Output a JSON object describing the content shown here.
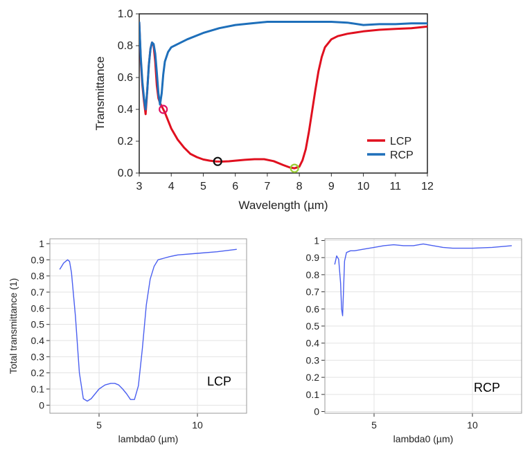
{
  "chart_data": [
    {
      "id": "top",
      "type": "line",
      "xlabel": "Wavelength (µm)",
      "ylabel": "Transmittance",
      "xlim": [
        3,
        12
      ],
      "ylim": [
        0,
        1
      ],
      "xticks": [
        "3",
        "4",
        "5",
        "6",
        "7",
        "8",
        "9",
        "10",
        "11",
        "12"
      ],
      "yticks": [
        "0.0",
        "0.2",
        "0.4",
        "0.6",
        "0.8",
        "1.0"
      ],
      "legend": {
        "position": "bottom-right",
        "entries": [
          "LCP",
          "RCP"
        ]
      },
      "series": [
        {
          "name": "LCP",
          "color": "#e0101f",
          "x": [
            3.0,
            3.05,
            3.1,
            3.15,
            3.2,
            3.25,
            3.3,
            3.35,
            3.4,
            3.45,
            3.5,
            3.55,
            3.6,
            3.65,
            3.7,
            3.75,
            3.8,
            3.9,
            4.0,
            4.2,
            4.4,
            4.6,
            4.8,
            5.0,
            5.2,
            5.4,
            5.6,
            5.8,
            6.0,
            6.3,
            6.6,
            6.9,
            7.2,
            7.5,
            7.7,
            7.85,
            8.0,
            8.1,
            8.2,
            8.3,
            8.4,
            8.5,
            8.6,
            8.7,
            8.8,
            9.0,
            9.2,
            9.5,
            10.0,
            10.5,
            11.0,
            11.5,
            12.0
          ],
          "y": [
            0.95,
            0.7,
            0.55,
            0.45,
            0.37,
            0.52,
            0.68,
            0.78,
            0.82,
            0.8,
            0.7,
            0.55,
            0.47,
            0.44,
            0.42,
            0.4,
            0.38,
            0.33,
            0.28,
            0.21,
            0.16,
            0.12,
            0.1,
            0.085,
            0.078,
            0.073,
            0.072,
            0.074,
            0.078,
            0.083,
            0.087,
            0.087,
            0.075,
            0.05,
            0.035,
            0.03,
            0.04,
            0.08,
            0.15,
            0.26,
            0.39,
            0.52,
            0.64,
            0.73,
            0.79,
            0.84,
            0.86,
            0.875,
            0.89,
            0.9,
            0.905,
            0.91,
            0.92
          ]
        },
        {
          "name": "RCP",
          "color": "#1e6fba",
          "x": [
            3.0,
            3.05,
            3.1,
            3.15,
            3.2,
            3.25,
            3.3,
            3.35,
            3.4,
            3.45,
            3.5,
            3.55,
            3.6,
            3.65,
            3.7,
            3.75,
            3.8,
            3.9,
            4.0,
            4.2,
            4.5,
            5.0,
            5.5,
            6.0,
            6.5,
            7.0,
            7.5,
            8.0,
            8.5,
            9.0,
            9.5,
            10.0,
            10.5,
            11.0,
            11.5,
            12.0
          ],
          "y": [
            0.95,
            0.72,
            0.57,
            0.47,
            0.4,
            0.52,
            0.68,
            0.78,
            0.82,
            0.81,
            0.75,
            0.63,
            0.5,
            0.43,
            0.5,
            0.62,
            0.7,
            0.76,
            0.79,
            0.81,
            0.84,
            0.88,
            0.91,
            0.93,
            0.94,
            0.95,
            0.95,
            0.95,
            0.95,
            0.95,
            0.945,
            0.93,
            0.935,
            0.935,
            0.94,
            0.94
          ]
        }
      ],
      "markers": [
        {
          "x": 3.75,
          "y": 0.4,
          "color": "#e01060"
        },
        {
          "x": 5.45,
          "y": 0.073,
          "color": "#111111"
        },
        {
          "x": 7.85,
          "y": 0.03,
          "color": "#9acd32"
        }
      ]
    },
    {
      "id": "lcp",
      "type": "line",
      "xlabel": "lambda0 (µm)",
      "ylabel": "Total transmittance (1)",
      "annotation": "LCP",
      "xlim": [
        2.5,
        12.5
      ],
      "ylim": [
        -0.05,
        1.03
      ],
      "xticks": [
        "5",
        "10"
      ],
      "yticks": [
        "0",
        "0.1",
        "0.2",
        "0.3",
        "0.4",
        "0.5",
        "0.6",
        "0.7",
        "0.8",
        "0.9",
        "1"
      ],
      "series": [
        {
          "name": "LCP",
          "color": "#4a5ff0",
          "x": [
            3.0,
            3.1,
            3.2,
            3.3,
            3.4,
            3.5,
            3.6,
            3.8,
            4.0,
            4.2,
            4.4,
            4.6,
            4.8,
            5.0,
            5.3,
            5.6,
            5.8,
            6.0,
            6.2,
            6.4,
            6.6,
            6.8,
            7.0,
            7.2,
            7.4,
            7.6,
            7.8,
            8.0,
            8.3,
            8.6,
            9.0,
            10.0,
            11.0,
            12.0
          ],
          "y": [
            0.84,
            0.86,
            0.88,
            0.89,
            0.9,
            0.89,
            0.82,
            0.55,
            0.2,
            0.04,
            0.025,
            0.04,
            0.07,
            0.1,
            0.125,
            0.135,
            0.135,
            0.125,
            0.1,
            0.07,
            0.035,
            0.035,
            0.12,
            0.35,
            0.62,
            0.78,
            0.86,
            0.9,
            0.91,
            0.92,
            0.93,
            0.94,
            0.95,
            0.965
          ]
        }
      ]
    },
    {
      "id": "rcp",
      "type": "line",
      "xlabel": "lambda0 (µm)",
      "ylabel": "",
      "annotation": "RCP",
      "xlim": [
        2.5,
        12.5
      ],
      "ylim": [
        -0.01,
        1.01
      ],
      "xticks": [
        "5",
        "10"
      ],
      "yticks": [
        "0",
        "0.1",
        "0.2",
        "0.3",
        "0.4",
        "0.5",
        "0.6",
        "0.7",
        "0.8",
        "0.9",
        "1"
      ],
      "series": [
        {
          "name": "RCP",
          "color": "#4a5ff0",
          "x": [
            3.0,
            3.1,
            3.2,
            3.3,
            3.35,
            3.4,
            3.45,
            3.5,
            3.6,
            3.8,
            4.0,
            4.5,
            5.0,
            5.5,
            6.0,
            6.5,
            7.0,
            7.5,
            8.0,
            8.5,
            9.0,
            9.5,
            10.0,
            11.0,
            12.0
          ],
          "y": [
            0.86,
            0.91,
            0.89,
            0.75,
            0.6,
            0.56,
            0.72,
            0.88,
            0.93,
            0.94,
            0.94,
            0.95,
            0.96,
            0.97,
            0.975,
            0.97,
            0.97,
            0.98,
            0.97,
            0.96,
            0.955,
            0.955,
            0.955,
            0.96,
            0.97
          ]
        }
      ]
    }
  ]
}
